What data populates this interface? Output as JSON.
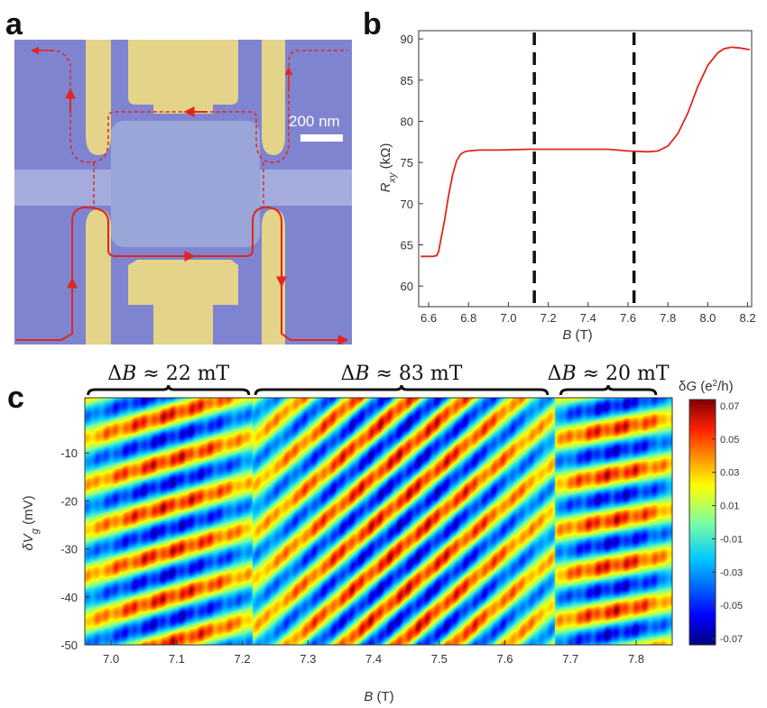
{
  "panels": {
    "a": "a",
    "b": "b",
    "c": "c"
  },
  "panel_a": {
    "scale_bar_label": "200 nm",
    "colors": {
      "substrate": "#7f84d0",
      "gate": "#e4d48a",
      "channel": "#9aa6d8",
      "edge_path": "#e0261f"
    }
  },
  "chart_data": [
    {
      "id": "b",
      "type": "line",
      "xlabel_italic": "B",
      "xlabel_unit": " (T)",
      "ylabel_italic": "R",
      "ylabel_sub": "xy",
      "ylabel_unit": " (kΩ)",
      "xlim": [
        6.55,
        8.22
      ],
      "ylim": [
        57.5,
        91
      ],
      "xticks": [
        "6.6",
        "6.8",
        "7.0",
        "7.2",
        "7.4",
        "7.6",
        "7.8",
        "8.0",
        "8.2"
      ],
      "yticks": [
        "60",
        "65",
        "70",
        "75",
        "80",
        "85",
        "90"
      ],
      "xtick_values": [
        6.6,
        6.8,
        7.0,
        7.2,
        7.4,
        7.6,
        7.8,
        8.0,
        8.2
      ],
      "ytick_values": [
        60,
        65,
        70,
        75,
        80,
        85,
        90
      ],
      "series": [
        {
          "name": "Rxy",
          "color": "#e0261f",
          "x": [
            6.56,
            6.62,
            6.64,
            6.65,
            6.66,
            6.68,
            6.7,
            6.72,
            6.74,
            6.76,
            6.78,
            6.8,
            6.85,
            6.95,
            7.1,
            7.3,
            7.5,
            7.6,
            7.7,
            7.75,
            7.8,
            7.85,
            7.9,
            7.95,
            8.0,
            8.05,
            8.08,
            8.12,
            8.16,
            8.21
          ],
          "y": [
            63.6,
            63.6,
            63.7,
            64.2,
            65.5,
            68.0,
            71.0,
            73.5,
            75.2,
            76.0,
            76.3,
            76.4,
            76.5,
            76.5,
            76.6,
            76.6,
            76.6,
            76.4,
            76.3,
            76.4,
            77.0,
            78.5,
            81.0,
            84.2,
            86.8,
            88.3,
            88.8,
            89.0,
            88.9,
            88.7
          ]
        }
      ],
      "vlines": [
        7.13,
        7.63
      ]
    },
    {
      "id": "c",
      "type": "heatmap",
      "xlabel_italic": "B",
      "xlabel_unit": "  (T)",
      "ylabel_italic": "δV",
      "ylabel_sub": "g",
      "ylabel_unit": " (mV)",
      "xlim": [
        6.96,
        7.855
      ],
      "ylim": [
        -50,
        1.5
      ],
      "xticks": [
        "7.0",
        "7.1",
        "7.2",
        "7.3",
        "7.4",
        "7.5",
        "7.6",
        "7.7",
        "7.8"
      ],
      "yticks": [
        "-10",
        "-20",
        "-30",
        "-40",
        "-50"
      ],
      "xtick_values": [
        7.0,
        7.1,
        7.2,
        7.3,
        7.4,
        7.5,
        7.6,
        7.7,
        7.8
      ],
      "ytick_values": [
        -10,
        -20,
        -30,
        -40,
        -50
      ],
      "colorbar": {
        "label_prefix": "δ",
        "label_italic": "G",
        "label_unit": " (e",
        "label_sup": "2",
        "label_end": "/h)",
        "ticks": [
          "0.07",
          "0.05",
          "0.03",
          "0.01",
          "-0.01",
          "-0.03",
          "-0.05",
          "-0.07"
        ],
        "range": [
          -0.07,
          0.07
        ]
      },
      "regions": [
        {
          "x_start": 6.96,
          "x_end": 7.215,
          "fringe_period_mV": 9.5,
          "slope_mV_per_T": 40
        },
        {
          "x_start": 7.215,
          "x_end": 7.675,
          "fringe_period_mV": 9.8,
          "slope_mV_per_T": 118
        },
        {
          "x_start": 7.675,
          "x_end": 7.855,
          "fringe_period_mV": 9.5,
          "slope_mV_per_T": 25
        }
      ],
      "braces": [
        {
          "from": 6.965,
          "to": 7.21,
          "prefix": "Δ",
          "italic": "B",
          "text": " ≈ 22 mT"
        },
        {
          "from": 7.22,
          "to": 7.665,
          "prefix": "Δ",
          "italic": "B",
          "text": " ≈ 83 mT"
        },
        {
          "from": 7.685,
          "to": 7.83,
          "prefix": "Δ",
          "italic": "B",
          "text": " ≈ 20 mT"
        }
      ]
    }
  ]
}
